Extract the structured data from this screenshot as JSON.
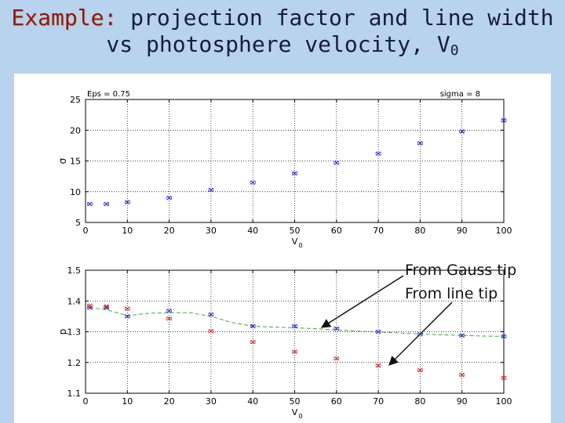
{
  "slide": {
    "title_prefix": "Example:",
    "title_rest": "projection factor and line width",
    "title_line2": "vs photosphere velocity, V",
    "title_sub": "0"
  },
  "annotations": {
    "gauss": "From Gauss tip",
    "line": "From line tip"
  },
  "chart_data": [
    {
      "type": "scatter",
      "title": "",
      "corner_left": "Eps = 0.75",
      "corner_right": "sigma = 8",
      "xlabel": "V",
      "xlabel_sub": "0",
      "ylabel": "σ",
      "xlim": [
        0,
        100
      ],
      "ylim": [
        5,
        25
      ],
      "xticks": [
        0,
        10,
        20,
        30,
        40,
        50,
        60,
        70,
        80,
        90,
        100
      ],
      "yticks": [
        5,
        10,
        15,
        20,
        25
      ],
      "grid": true,
      "series": [
        {
          "color": "#2a2ad0",
          "marker": "x",
          "x": [
            1,
            5,
            10,
            20,
            30,
            40,
            50,
            60,
            70,
            80,
            90,
            100
          ],
          "y": [
            8.0,
            8.0,
            8.3,
            9.0,
            10.3,
            11.5,
            13.0,
            14.7,
            16.2,
            17.9,
            19.8,
            21.6
          ]
        }
      ]
    },
    {
      "type": "line",
      "title": "",
      "xlabel": "V",
      "xlabel_sub": "0",
      "ylabel": "p",
      "xlim": [
        0,
        100
      ],
      "ylim": [
        1.1,
        1.5
      ],
      "xticks": [
        0,
        10,
        20,
        30,
        40,
        50,
        60,
        70,
        80,
        90,
        100
      ],
      "yticks": [
        1.1,
        1.2,
        1.3,
        1.4,
        1.5
      ],
      "grid": true,
      "series": [
        {
          "color": "#2a2ad0",
          "marker": "x",
          "x": [
            1,
            5,
            10,
            20,
            30,
            40,
            50,
            60,
            70,
            80,
            90,
            100
          ],
          "y": [
            1.378,
            1.378,
            1.35,
            1.368,
            1.356,
            1.318,
            1.318,
            1.31,
            1.3,
            1.292,
            1.288,
            1.285
          ]
        },
        {
          "color": "#d02a2a",
          "marker": "x",
          "x": [
            1,
            5,
            10,
            20,
            30,
            40,
            50,
            60,
            70,
            80,
            90,
            100
          ],
          "y": [
            1.385,
            1.382,
            1.375,
            1.343,
            1.302,
            1.267,
            1.235,
            1.213,
            1.19,
            1.175,
            1.16,
            1.15
          ]
        }
      ],
      "fit": {
        "color": "#3aaa3a",
        "x": [
          1,
          5,
          10,
          15,
          20,
          25,
          30,
          35,
          40,
          45,
          50,
          55,
          60,
          65,
          70,
          75,
          80,
          85,
          90,
          95,
          100
        ],
        "y": [
          1.378,
          1.372,
          1.352,
          1.36,
          1.362,
          1.362,
          1.35,
          1.33,
          1.318,
          1.315,
          1.313,
          1.31,
          1.306,
          1.302,
          1.299,
          1.296,
          1.293,
          1.29,
          1.288,
          1.286,
          1.285
        ]
      }
    }
  ]
}
